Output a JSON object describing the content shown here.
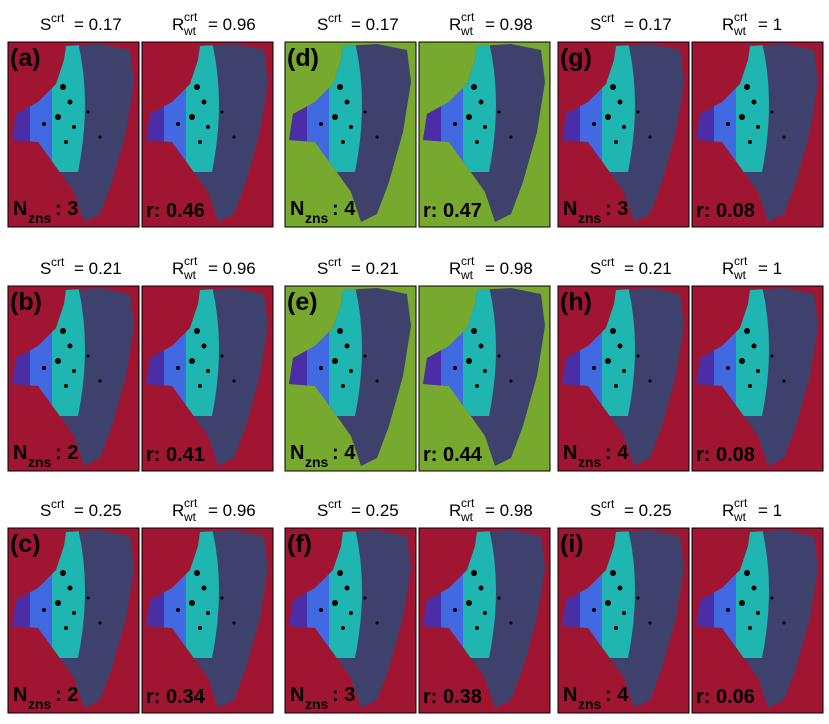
{
  "symbols": {
    "s": "S",
    "crt": "crt",
    "r": "R",
    "wt": "wt",
    "n": "N",
    "zns": "zns"
  },
  "panels": [
    {
      "label": "(a)",
      "s_crt": "= 0.17",
      "r_wt_crt": "= 0.96",
      "n_zns": ": 3",
      "r": "r: 0.46",
      "background": "#a01632"
    },
    {
      "label": "(b)",
      "s_crt": "= 0.21",
      "r_wt_crt": "= 0.96",
      "n_zns": ": 2",
      "r": "r: 0.41",
      "background": "#a01632"
    },
    {
      "label": "(c)",
      "s_crt": "= 0.25",
      "r_wt_crt": "= 0.96",
      "n_zns": ": 2",
      "r": "r: 0.34",
      "background": "#a01632"
    },
    {
      "label": "(d)",
      "s_crt": "= 0.17",
      "r_wt_crt": "= 0.98",
      "n_zns": ": 4",
      "r": "r: 0.47",
      "background": "#76a92e"
    },
    {
      "label": "(e)",
      "s_crt": "= 0.21",
      "r_wt_crt": "= 0.98",
      "n_zns": ": 4",
      "r": "r: 0.44",
      "background": "#76a92e"
    },
    {
      "label": "(f)",
      "s_crt": "= 0.25",
      "r_wt_crt": "= 0.98",
      "n_zns": ": 3",
      "r": "r: 0.38",
      "background": "#a01632"
    },
    {
      "label": "(g)",
      "s_crt": "= 0.17",
      "r_wt_crt": "= 1",
      "n_zns": ": 3",
      "r": "r: 0.08",
      "background": "#a01632"
    },
    {
      "label": "(h)",
      "s_crt": "= 0.21",
      "r_wt_crt": "= 1",
      "n_zns": ": 4",
      "r": "r: 0.08",
      "background": "#a01632"
    },
    {
      "label": "(i)",
      "s_crt": "= 0.25",
      "r_wt_crt": "= 1",
      "n_zns": ": 4",
      "r": "r: 0.06",
      "background": "#a01632"
    }
  ]
}
